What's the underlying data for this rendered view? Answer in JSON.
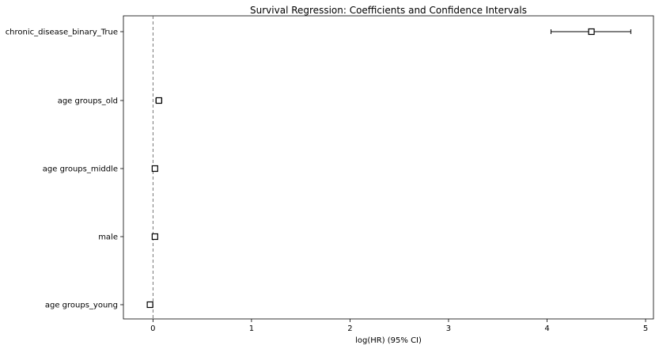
{
  "chart_data": {
    "type": "forest",
    "title": "Survival Regression: Coefficients and Confidence Intervals",
    "xlabel": "log(HR) (95% CI)",
    "ylabel": "",
    "xlim": [
      -0.3,
      5.08
    ],
    "xticks": [
      0,
      1,
      2,
      3,
      4,
      5
    ],
    "xtick_labels": [
      "0",
      "1",
      "2",
      "3",
      "4",
      "5"
    ],
    "reference_line": 0,
    "grid": false,
    "rows": [
      {
        "label": "chronic_disease_binary_True",
        "coef": 4.45,
        "lower": 4.04,
        "upper": 4.85
      },
      {
        "label": "age groups_old",
        "coef": 0.06,
        "lower": 0.03,
        "upper": 0.09
      },
      {
        "label": "age groups_middle",
        "coef": 0.02,
        "lower": 0.0,
        "upper": 0.04
      },
      {
        "label": "male",
        "coef": 0.02,
        "lower": 0.0,
        "upper": 0.04
      },
      {
        "label": "age groups_young",
        "coef": -0.03,
        "lower": -0.05,
        "upper": -0.01
      }
    ]
  }
}
